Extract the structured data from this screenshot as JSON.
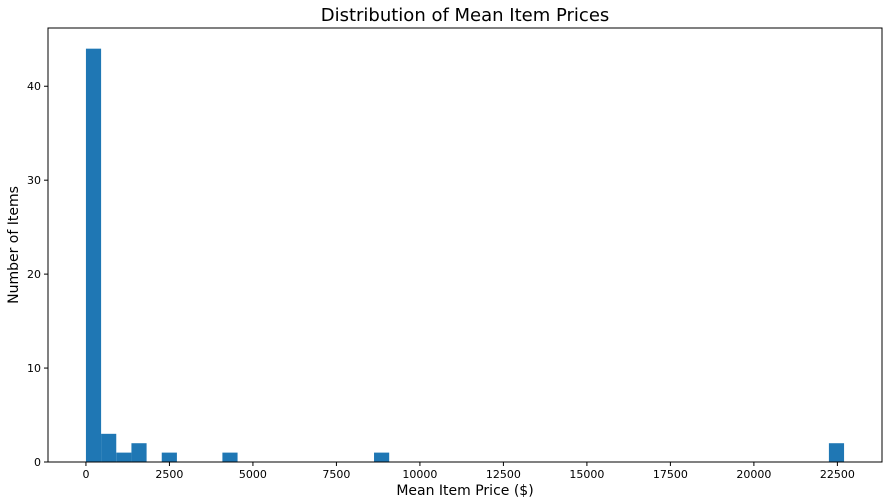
{
  "chart_data": {
    "type": "bar",
    "subtype": "histogram",
    "title": "Distribution of Mean Item Prices",
    "xlabel": "Mean Item Price ($)",
    "ylabel": "Number of Items",
    "bar_color": "#1f77b4",
    "xlim": [
      -1136,
      23836
    ],
    "ylim": [
      0,
      46.2
    ],
    "xticks": [
      0,
      2500,
      5000,
      7500,
      10000,
      12500,
      15000,
      17500,
      20000,
      22500
    ],
    "yticks": [
      0,
      10,
      20,
      30,
      40
    ],
    "bin_width": 454,
    "bins": [
      {
        "x_start": 0,
        "x_end": 454,
        "count": 44
      },
      {
        "x_start": 454,
        "x_end": 908,
        "count": 3
      },
      {
        "x_start": 908,
        "x_end": 1362,
        "count": 1
      },
      {
        "x_start": 1362,
        "x_end": 1816,
        "count": 2
      },
      {
        "x_start": 2270,
        "x_end": 2724,
        "count": 1
      },
      {
        "x_start": 4086,
        "x_end": 4540,
        "count": 1
      },
      {
        "x_start": 8626,
        "x_end": 9080,
        "count": 1
      },
      {
        "x_start": 22246,
        "x_end": 22700,
        "count": 2
      }
    ],
    "grid": false,
    "legend": "none"
  }
}
